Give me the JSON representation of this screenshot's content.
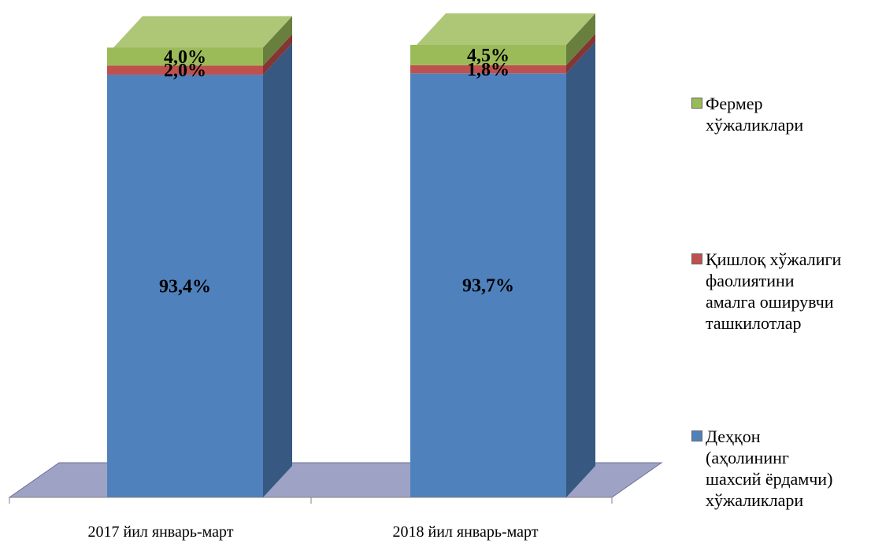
{
  "chart_data": {
    "type": "bar",
    "stacked": true,
    "three_d": true,
    "categories": [
      "2017 йил январь-март",
      "2018 йил январь-март"
    ],
    "ylim": [
      0,
      100
    ],
    "series": [
      {
        "name": "Деҳқон (аҳолининг шахсий ёрдамчи) хўжаликлари",
        "legend_text": "Деҳқон\n(аҳолининг\nшахсий ёрдамчи)\nхўжаликлари",
        "color": "#4F81BD",
        "values": [
          93.4,
          93.7
        ],
        "labels": [
          "93,4%",
          "93,7%"
        ]
      },
      {
        "name": "Қишлоқ хўжалиги фаолиятини амалга оширувчи ташкилотлар",
        "legend_text": "Қишлоқ хўжалиги\nфаолиятини\nамалга оширувчи\nташкилотлар",
        "color": "#C0504D",
        "values": [
          2.0,
          1.8
        ],
        "labels": [
          "2,0%",
          "1,8%"
        ]
      },
      {
        "name": "Фермер хўжаликлари",
        "legend_text": "Фермер\nхўжаликлари",
        "color": "#9BBB59",
        "values": [
          4.0,
          4.5
        ],
        "labels": [
          "4,0%",
          "4,5%"
        ]
      }
    ],
    "legend_position": "right",
    "grid": false
  }
}
